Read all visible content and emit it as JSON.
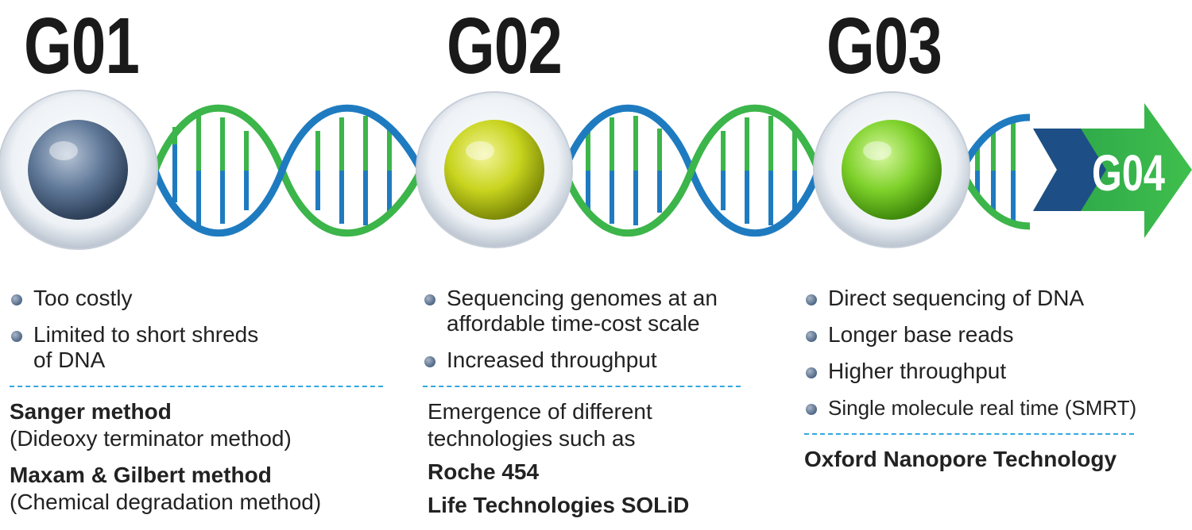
{
  "generations": [
    {
      "title": "G01",
      "bullets": [
        "Too costly",
        "Limited to short shreds of DNA"
      ],
      "methods": [
        {
          "name": "Sanger method",
          "detail": "(Dideoxy terminator method)"
        },
        {
          "name": "Maxam & Gilbert method",
          "detail": "(Chemical degradation method)"
        }
      ],
      "colors": {
        "sphere": "#4f6785"
      }
    },
    {
      "title": "G02",
      "bullets": [
        "Sequencing genomes at an affordable time-cost scale",
        "Increased throughput"
      ],
      "intro": "Emergence of different technologies such as",
      "technologies": [
        "Roche 454",
        "Life Technologies SOLiD"
      ],
      "colors": {
        "sphere": "#c8d41e"
      }
    },
    {
      "title": "G03",
      "bullets": [
        "Direct sequencing of DNA",
        "Longer base reads",
        "Higher throughput",
        "Single molecule real time (SMRT)"
      ],
      "technologies": [
        "Oxford Nanopore Technology"
      ],
      "colors": {
        "sphere": "#7ed12a"
      }
    }
  ],
  "next_generation": {
    "title": "G04",
    "color": "#3cb54a"
  },
  "colors": {
    "helix_green": "#3cb54a",
    "helix_blue": "#1f7bc0",
    "separator": "#32a8e0"
  }
}
